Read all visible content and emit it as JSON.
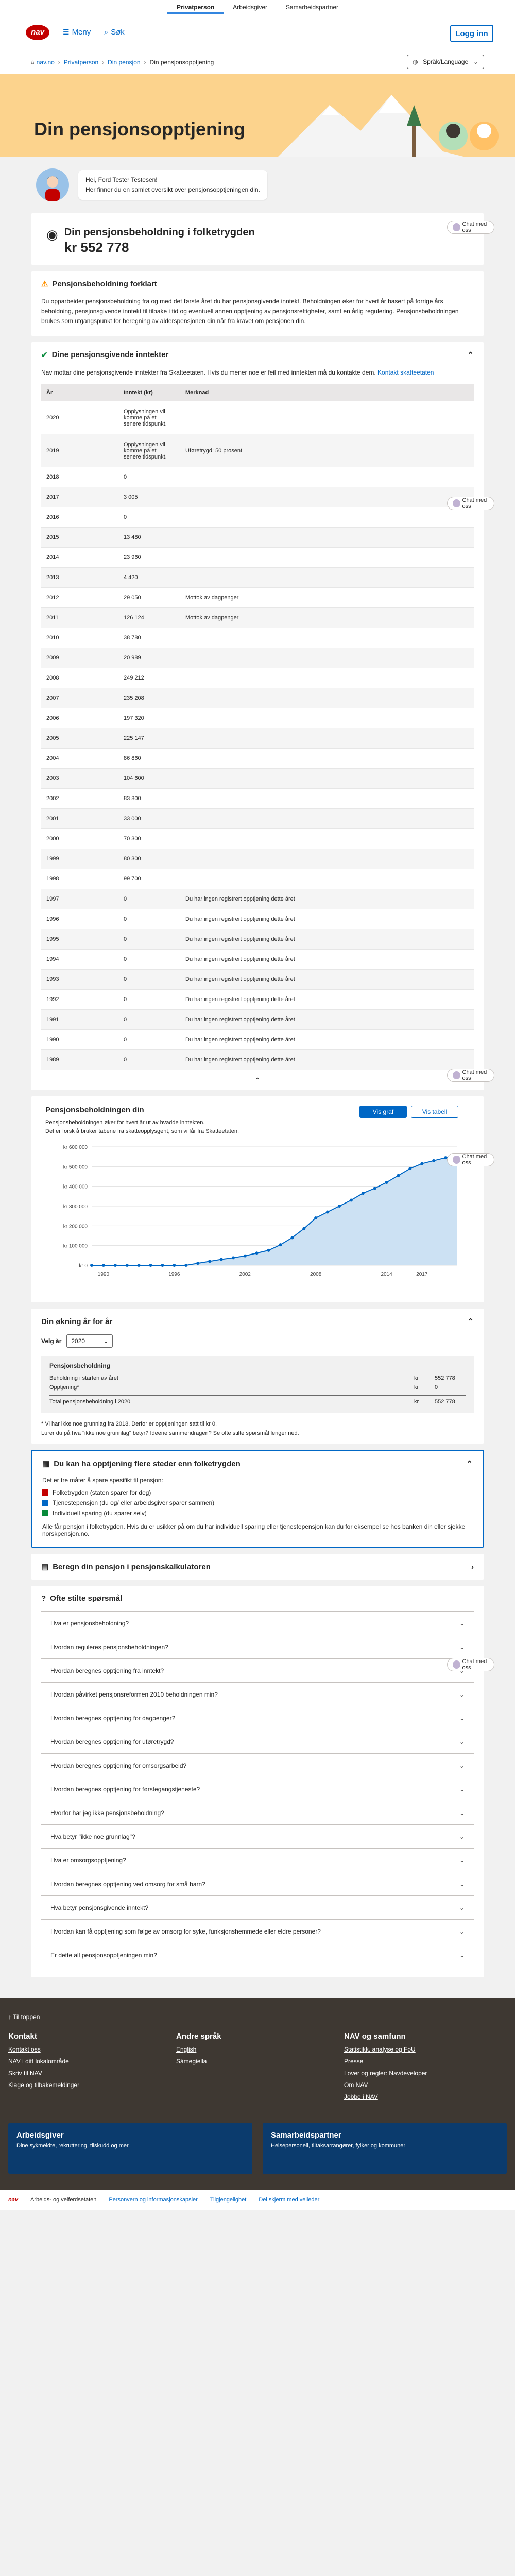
{
  "topnav": {
    "items": [
      "Privatperson",
      "Arbeidsgiver",
      "Samarbeidspartner"
    ]
  },
  "header": {
    "logo": "nav",
    "menu_label": "Meny",
    "search_label": "Søk",
    "login_label": "Logg inn"
  },
  "breadcrumb": {
    "items": [
      "nav.no",
      "Privatperson",
      "Din pensjon",
      "Din pensjonsopptjening"
    ],
    "language": "Språk/Language"
  },
  "banner": {
    "title": "Din pensjonsopptjening"
  },
  "greeting": {
    "line1": "Hei, Ford Tester Testesen!",
    "line2": "Her finner du en samlet oversikt over pensjonsopptjeningen din."
  },
  "chat_label": "Chat med oss",
  "balance": {
    "title": "Din pensjonsbeholdning i folketrygden",
    "amount": "kr 552 778"
  },
  "forklart": {
    "title": "Pensjonsbeholdning forklart",
    "text": "Du opparbeider pensjonsbeholdning fra og med det første året du har pensjonsgivende inntekt. Beholdningen øker for hvert år basert på forrige års beholdning, pensjonsgivende inntekt til tilbake i tid og eventuell annen opptjening av pensjonsrettigheter, samt en årlig regulering. Pensjonsbeholdningen brukes som utgangspunkt for beregning av alderspensjonen din når fra kravet om pensjonen din."
  },
  "inntekt": {
    "title": "Dine pensjonsgivende inntekter",
    "intro": "Nav mottar dine pensjonsgivende inntekter fra Skatteetaten. Hvis du mener noe er feil med inntekten må du kontakte dem.",
    "link": "Kontakt skatteetaten",
    "columns": [
      "År",
      "Inntekt (kr)",
      "Merknad"
    ],
    "rows": [
      {
        "year": "2020",
        "amount": "Opplysningen vil komme på et senere tidspunkt.",
        "note": ""
      },
      {
        "year": "2019",
        "amount": "Opplysningen vil komme på et senere tidspunkt.",
        "note": "Uføretrygd: 50 prosent"
      },
      {
        "year": "2018",
        "amount": "0",
        "note": ""
      },
      {
        "year": "2017",
        "amount": "3 005",
        "note": ""
      },
      {
        "year": "2016",
        "amount": "0",
        "note": ""
      },
      {
        "year": "2015",
        "amount": "13 480",
        "note": ""
      },
      {
        "year": "2014",
        "amount": "23 960",
        "note": ""
      },
      {
        "year": "2013",
        "amount": "4 420",
        "note": ""
      },
      {
        "year": "2012",
        "amount": "29 050",
        "note": "Mottok av dagpenger"
      },
      {
        "year": "2011",
        "amount": "126 124",
        "note": "Mottok av dagpenger"
      },
      {
        "year": "2010",
        "amount": "38 780",
        "note": ""
      },
      {
        "year": "2009",
        "amount": "20 989",
        "note": ""
      },
      {
        "year": "2008",
        "amount": "249 212",
        "note": ""
      },
      {
        "year": "2007",
        "amount": "235 208",
        "note": ""
      },
      {
        "year": "2006",
        "amount": "197 320",
        "note": ""
      },
      {
        "year": "2005",
        "amount": "225 147",
        "note": ""
      },
      {
        "year": "2004",
        "amount": "86 860",
        "note": ""
      },
      {
        "year": "2003",
        "amount": "104 600",
        "note": ""
      },
      {
        "year": "2002",
        "amount": "83 800",
        "note": ""
      },
      {
        "year": "2001",
        "amount": "33 000",
        "note": ""
      },
      {
        "year": "2000",
        "amount": "70 300",
        "note": ""
      },
      {
        "year": "1999",
        "amount": "80 300",
        "note": ""
      },
      {
        "year": "1998",
        "amount": "99 700",
        "note": ""
      },
      {
        "year": "1997",
        "amount": "0",
        "note": "Du har ingen registrert opptjening dette året"
      },
      {
        "year": "1996",
        "amount": "0",
        "note": "Du har ingen registrert opptjening dette året"
      },
      {
        "year": "1995",
        "amount": "0",
        "note": "Du har ingen registrert opptjening dette året"
      },
      {
        "year": "1994",
        "amount": "0",
        "note": "Du har ingen registrert opptjening dette året"
      },
      {
        "year": "1993",
        "amount": "0",
        "note": "Du har ingen registrert opptjening dette året"
      },
      {
        "year": "1992",
        "amount": "0",
        "note": "Du har ingen registrert opptjening dette året"
      },
      {
        "year": "1991",
        "amount": "0",
        "note": "Du har ingen registrert opptjening dette året"
      },
      {
        "year": "1990",
        "amount": "0",
        "note": "Du har ingen registrert opptjening dette året"
      },
      {
        "year": "1989",
        "amount": "0",
        "note": "Du har ingen registrert opptjening dette året"
      }
    ]
  },
  "utvikling": {
    "title": "Pensjonsbeholdningen din",
    "text": "Pensjonsbeholdningen øker for hvert år ut av hvadde inntekten.\nDet er forsk å bruker tabene fra skatteopplysgent, som vi får fra Skatteetaten.",
    "btn_graph": "Vis graf",
    "btn_table": "Vis tabell"
  },
  "chart_data": {
    "type": "area",
    "x": [
      1989,
      1990,
      1991,
      1992,
      1993,
      1994,
      1995,
      1996,
      1997,
      1998,
      1999,
      2000,
      2001,
      2002,
      2003,
      2004,
      2005,
      2006,
      2007,
      2008,
      2009,
      2010,
      2011,
      2012,
      2013,
      2014,
      2015,
      2016,
      2017,
      2018,
      2019,
      2020
    ],
    "values": [
      0,
      0,
      0,
      0,
      0,
      0,
      0,
      0,
      0,
      10000,
      20000,
      30000,
      38000,
      48000,
      62000,
      76000,
      104000,
      140000,
      186000,
      240000,
      270000,
      300000,
      330000,
      365000,
      390000,
      420000,
      455000,
      490000,
      515000,
      530000,
      545000,
      552778
    ],
    "ylim": [
      0,
      600000
    ],
    "y_ticks": [
      "kr 0",
      "kr 100 000",
      "kr 200 000",
      "kr 300 000",
      "kr 400 000",
      "kr 500 000",
      "kr 600 000"
    ],
    "x_ticks": [
      "1990",
      "1996",
      "2002",
      "2008",
      "2014",
      "2017"
    ],
    "color": "#0067c5"
  },
  "aar": {
    "title": "Din økning år for år",
    "select_label": "Velg år",
    "select_value": "2020",
    "header": "Pensjonsbeholdning",
    "rows": [
      {
        "label": "Beholdning i starten av året",
        "unit": "kr",
        "value": "552 778"
      },
      {
        "label": "Opptjening*",
        "unit": "kr",
        "value": "0"
      },
      {
        "label": "Total pensjonsbeholdning i 2020",
        "unit": "kr",
        "value": "552 778"
      }
    ],
    "note1": "* Vi har ikke noe grunnlag fra 2018. Derfor er opptjeningen satt til kr 0.",
    "note2": "Lurer du på hva \"ikke noe grunnlag\" betyr? Ideene sammendragen? Se ofte stilte spørsmål lenger ned."
  },
  "ordninger": {
    "title": "Du kan ha opptjening flere steder enn folketrygden",
    "intro": "Det er tre måter å spare spesifikt til pensjon:",
    "items": [
      "Folketrygden (staten sparer for deg)",
      "Tjenestepensjon (du og/ eller arbeidsgiver sparer sammen)",
      "Individuell sparing (du sparer selv)"
    ],
    "text": "Alle får pensjon i folketrygden. Hvis du er usikker på om du har individuell sparing eller tjenestepensjon kan du for eksempel se hos banken din eller sjekke norskpensjon.no."
  },
  "kalkulator": {
    "title": "Beregn din pensjon i pensjonskalkulatoren"
  },
  "faq": {
    "title": "Ofte stilte spørsmål",
    "items": [
      "Hva er pensjonsbeholdning?",
      "Hvordan reguleres pensjonsbeholdningen?",
      "Hvordan beregnes opptjening fra inntekt?",
      "Hvordan påvirket pensjonsreformen 2010 beholdningen min?",
      "Hvordan beregnes opptjening for dagpenger?",
      "Hvordan beregnes opptjening for uføretrygd?",
      "Hvordan beregnes opptjening for omsorgsarbeid?",
      "Hvordan beregnes opptjening for førstegangstjeneste?",
      "Hvorfor har jeg ikke pensjonsbeholdning?",
      "Hva betyr \"ikke noe grunnlag\"?",
      "Hva er omsorgsopptjening?",
      "Hvordan beregnes opptjening ved omsorg for små barn?",
      "Hva betyr pensjonsgivende inntekt?",
      "Hvordan kan få opptjening som følge av omsorg for syke, funksjonshemmede eller eldre personer?",
      "Er dette all pensjonsopptjeningen min?"
    ]
  },
  "footer": {
    "top_link": "Til toppen",
    "cols": [
      {
        "title": "Kontakt",
        "links": [
          "Kontakt oss",
          "NAV i ditt lokalområde",
          "Skriv til NAV",
          "Klage og tilbakemeldinger"
        ]
      },
      {
        "title": "Andre språk",
        "links": [
          "English",
          "Sámegiella"
        ]
      },
      {
        "title": "NAV og samfunn",
        "links": [
          "Statistikk, analyse og FoU",
          "Presse",
          "Lover og regler: Navdeveloper",
          "Om NAV",
          "Jobbe i NAV"
        ]
      }
    ],
    "cards": [
      {
        "title": "Arbeidsgiver",
        "text": "Dine sykmeldte, rekruttering, tilskudd og mer."
      },
      {
        "title": "Samarbeidspartner",
        "text": "Helsepersonell, tiltaksarrangører, fylker og kommuner"
      }
    ],
    "bottom": {
      "brand": "Arbeids- og velferdsetaten",
      "links": [
        "Personvern og informasjonskapsler",
        "Tilgjengelighet",
        "Del skjerm med veileder"
      ]
    }
  }
}
